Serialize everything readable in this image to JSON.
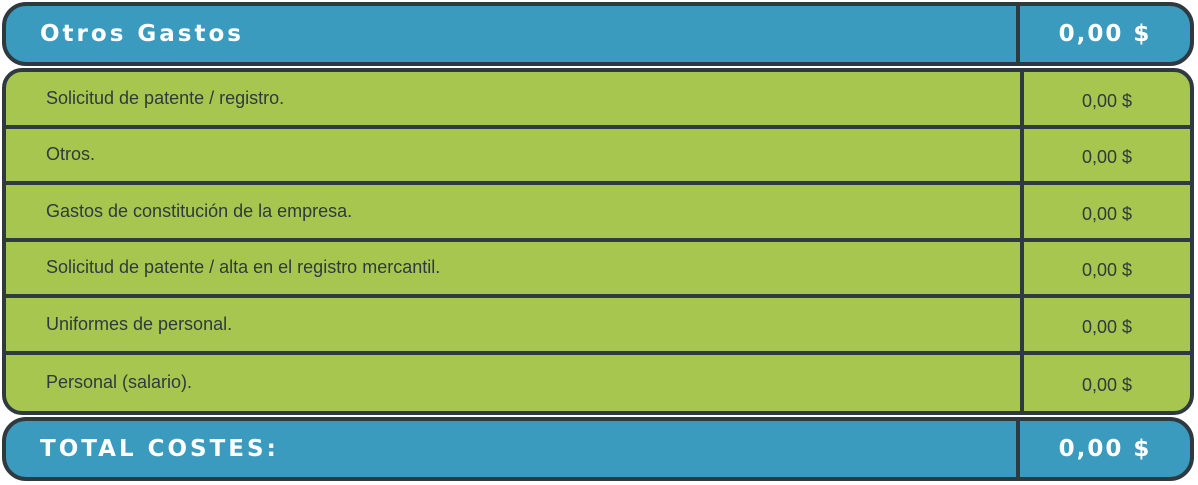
{
  "header": {
    "title": "Otros Gastos",
    "amount": "0,00 $"
  },
  "rows": [
    {
      "label": "Solicitud de patente / registro.",
      "amount": "0,00 $"
    },
    {
      "label": "Otros.",
      "amount": "0,00 $"
    },
    {
      "label": "Gastos de constitución de la empresa.",
      "amount": "0,00 $"
    },
    {
      "label": "Solicitud de patente / alta en el registro mercantil.",
      "amount": "0,00 $"
    },
    {
      "label": "Uniformes de personal.",
      "amount": "0,00 $"
    },
    {
      "label": "Personal (salario).",
      "amount": "0,00 $"
    }
  ],
  "total": {
    "label": "TOTAL COSTES:",
    "amount": "0,00 $"
  },
  "colors": {
    "header_blue": "#3a9bbf",
    "body_green": "#a6c64f",
    "border": "#2e3a3f"
  }
}
